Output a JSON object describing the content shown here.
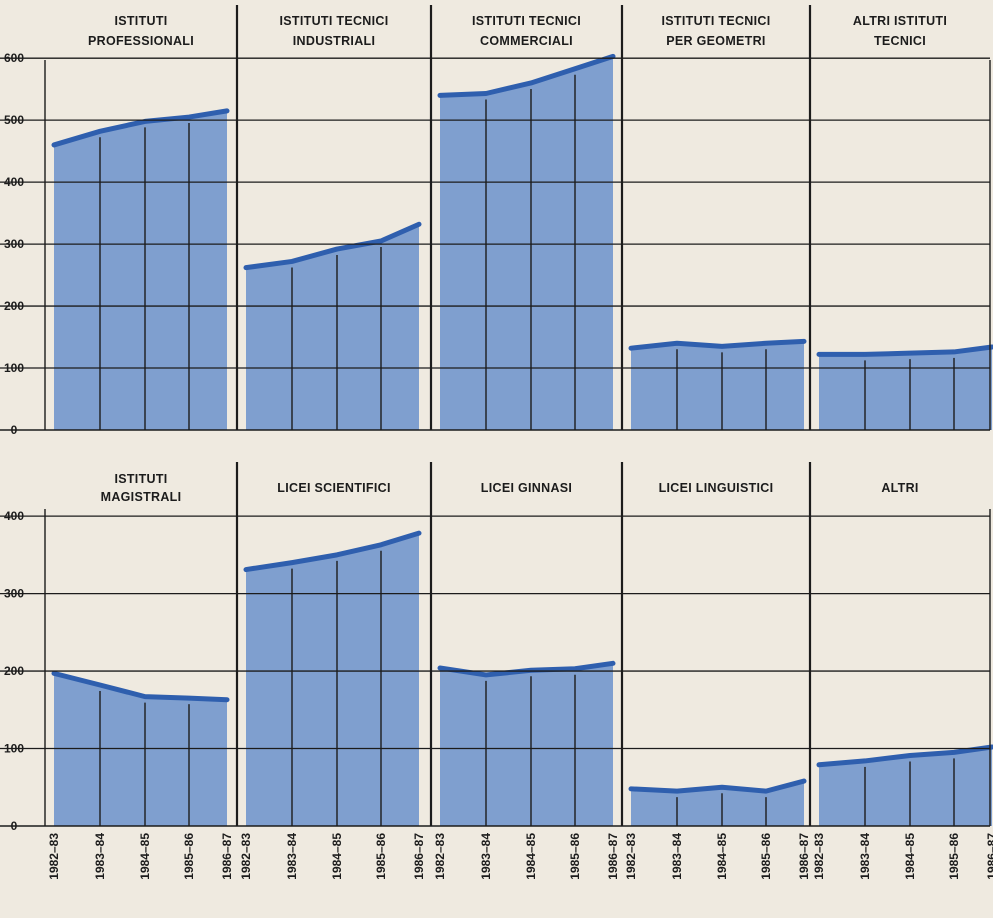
{
  "colors": {
    "background": "#efeae0",
    "area_fill": "#7f9fcf",
    "line": "#2f5fae",
    "grid": "#1c1c1c",
    "text": "#1c1c1c"
  },
  "x_categories": [
    "1982–83",
    "1983–84",
    "1984–85",
    "1985–86",
    "1986–87"
  ],
  "chart_data": [
    {
      "type": "area",
      "panel_row": "top",
      "y_ticks": [
        0,
        100,
        200,
        300,
        400,
        500,
        600
      ],
      "ylim": [
        0,
        640
      ],
      "grid": true,
      "panels": [
        {
          "title": "ISTITUTI\nPROFESSIONALI",
          "values": [
            460,
            482,
            498,
            505,
            515
          ]
        },
        {
          "title": "ISTITUTI TECNICI\nINDUSTRIALI",
          "values": [
            262,
            272,
            292,
            305,
            332
          ]
        },
        {
          "title": "ISTITUTI TECNICI\nCOMMERCIALI",
          "values": [
            540,
            543,
            560,
            583,
            603
          ]
        },
        {
          "title": "ISTITUTI TECNICI\nPER GEOMETRI",
          "values": [
            132,
            140,
            135,
            140,
            143
          ]
        },
        {
          "title": "ALTRI ISTITUTI\nTECNICI",
          "values": [
            122,
            122,
            124,
            126,
            134
          ]
        }
      ]
    },
    {
      "type": "area",
      "panel_row": "bottom",
      "y_ticks": [
        0,
        100,
        200,
        300,
        400
      ],
      "ylim": [
        0,
        460
      ],
      "grid": true,
      "panels": [
        {
          "title": "ISTITUTI\nMAGISTRALI",
          "values": [
            197,
            182,
            167,
            165,
            163
          ]
        },
        {
          "title": "LICEI SCIENTIFICI",
          "values": [
            331,
            340,
            350,
            363,
            378
          ]
        },
        {
          "title": "LICEI GINNASI",
          "values": [
            204,
            195,
            201,
            203,
            210
          ]
        },
        {
          "title": "LICEI LINGUISTICI",
          "values": [
            48,
            45,
            50,
            45,
            58
          ]
        },
        {
          "title": "ALTRI",
          "values": [
            79,
            84,
            91,
            95,
            102
          ]
        }
      ]
    }
  ]
}
